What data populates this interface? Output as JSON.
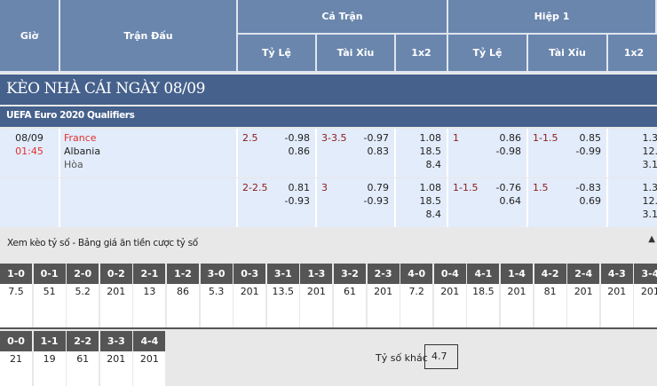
{
  "header": {
    "time": "Giờ",
    "match": "Trận Đấu",
    "full": "Cả Trận",
    "half": "Hiệp 1",
    "cols": [
      "Tỷ Lệ",
      "Tài Xỉu",
      "1x2",
      "Tỷ Lệ",
      "Tài Xỉu",
      "1x2"
    ]
  },
  "banner": "KÈO NHÀ CÁI NGÀY 08/09",
  "league": "UEFA Euro 2020 Qualifiers",
  "match": {
    "date": "08/09",
    "time": "01:45",
    "home": "France",
    "away": "Albania",
    "draw": "Hòa"
  },
  "rows": [
    {
      "hdp": "2.5",
      "hdp_odds": [
        "-0.98",
        "0.86"
      ],
      "ou": "3-3.5",
      "ou_odds": [
        "-0.97",
        "0.83"
      ],
      "x12": [
        "1.08",
        "18.5",
        "8.4"
      ],
      "h_hdp": "1",
      "h_hdp_odds": [
        "0.86",
        "-0.98"
      ],
      "h_ou": "1-1.5",
      "h_ou_odds": [
        "0.85",
        "-0.99"
      ],
      "h_x12": [
        "1.3",
        "12.",
        "3.1"
      ]
    },
    {
      "hdp": "2-2.5",
      "hdp_odds": [
        "0.81",
        "-0.93"
      ],
      "ou": "3",
      "ou_odds": [
        "0.79",
        "-0.93"
      ],
      "x12": [
        "1.08",
        "18.5",
        "8.4"
      ],
      "h_hdp": "1-1.5",
      "h_hdp_odds": [
        "-0.76",
        "0.64"
      ],
      "h_ou": "1.5",
      "h_ou_odds": [
        "-0.83",
        "0.69"
      ],
      "h_x12": [
        "1.3",
        "12.",
        "3.1"
      ]
    }
  ],
  "correct_score": {
    "title": "Xem kèo tỷ số - Bảng giá ăn tiền cược tỷ số",
    "row1": [
      [
        "1-0",
        "7.5"
      ],
      [
        "0-1",
        "51"
      ],
      [
        "2-0",
        "5.2"
      ],
      [
        "0-2",
        "201"
      ],
      [
        "2-1",
        "13"
      ],
      [
        "1-2",
        "86"
      ],
      [
        "3-0",
        "5.3"
      ],
      [
        "0-3",
        "201"
      ],
      [
        "3-1",
        "13.5"
      ],
      [
        "1-3",
        "201"
      ],
      [
        "3-2",
        "61"
      ],
      [
        "2-3",
        "201"
      ],
      [
        "4-0",
        "7.2"
      ],
      [
        "0-4",
        "201"
      ],
      [
        "4-1",
        "18.5"
      ],
      [
        "1-4",
        "201"
      ],
      [
        "4-2",
        "81"
      ],
      [
        "2-4",
        "201"
      ],
      [
        "4-3",
        "201"
      ],
      [
        "3-4",
        "201"
      ]
    ],
    "row2": [
      [
        "0-0",
        "21"
      ],
      [
        "1-1",
        "19"
      ],
      [
        "2-2",
        "61"
      ],
      [
        "3-3",
        "201"
      ],
      [
        "4-4",
        "201"
      ]
    ],
    "other_label": "Tỷ số khác",
    "other_value": "4.7"
  }
}
